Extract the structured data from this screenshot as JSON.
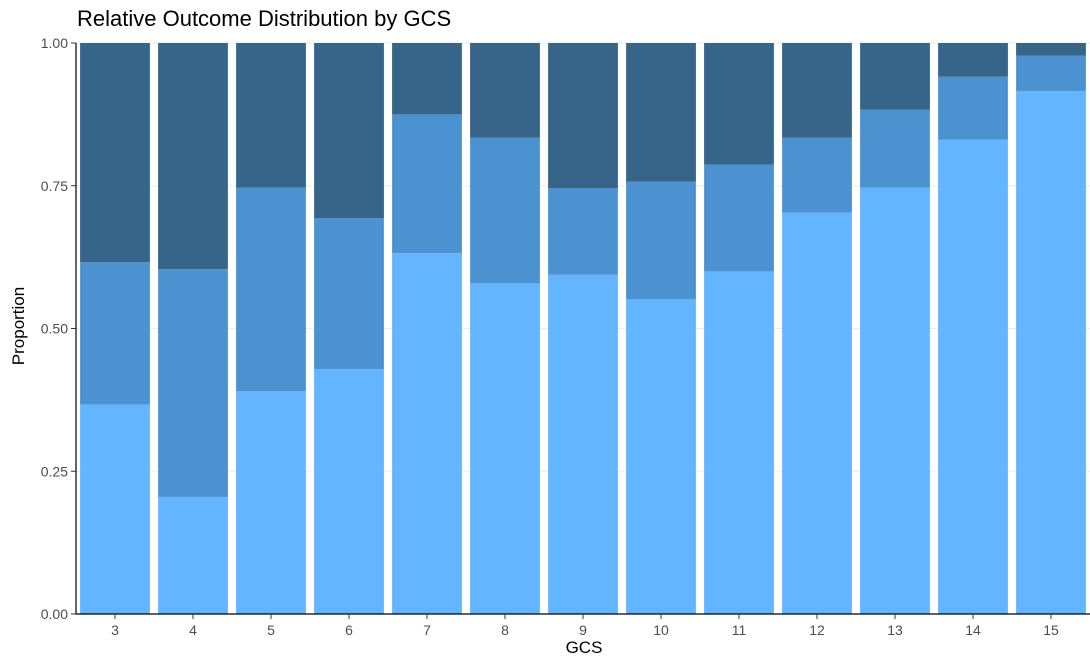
{
  "chart_data": {
    "type": "bar",
    "stacked": true,
    "title": "Relative Outcome Distribution by GCS",
    "xlabel": "GCS",
    "ylabel": "Proportion",
    "ylim": [
      0,
      1
    ],
    "yticks": [
      "0.00",
      "0.25",
      "0.50",
      "0.75",
      "1.00"
    ],
    "categories": [
      "3",
      "4",
      "5",
      "6",
      "7",
      "8",
      "9",
      "10",
      "11",
      "12",
      "13",
      "14",
      "15"
    ],
    "grid": "horizontal-light",
    "legend": "none",
    "series": [
      {
        "values": [
          0.367,
          0.205,
          0.39,
          0.429,
          0.632,
          0.579,
          0.594,
          0.551,
          0.6,
          0.703,
          0.747,
          0.831,
          0.916
        ],
        "color": "#63b5ff"
      },
      {
        "values": [
          0.249,
          0.399,
          0.357,
          0.264,
          0.243,
          0.255,
          0.152,
          0.206,
          0.187,
          0.131,
          0.136,
          0.11,
          0.062
        ],
        "color": "#4d92d0"
      },
      {
        "values": [
          0.384,
          0.396,
          0.253,
          0.307,
          0.125,
          0.166,
          0.254,
          0.243,
          0.213,
          0.166,
          0.117,
          0.059,
          0.022
        ],
        "color": "#366589"
      }
    ]
  }
}
